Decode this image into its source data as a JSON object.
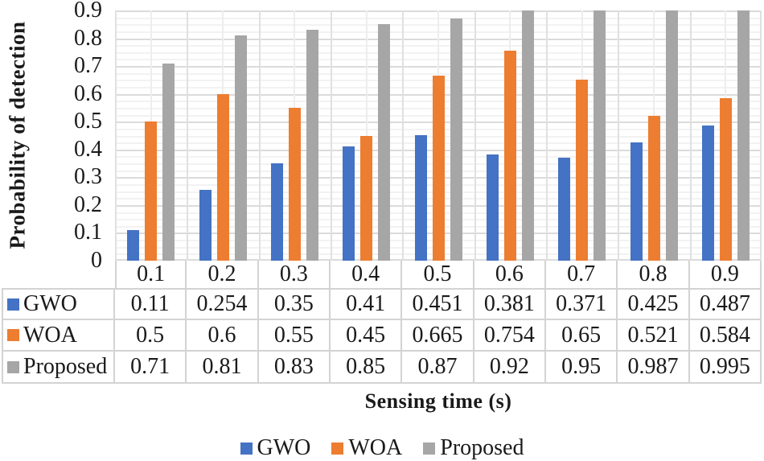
{
  "chart_data": {
    "type": "bar",
    "title": "",
    "xlabel": "Sensing time (s)",
    "ylabel": "Probability of detection",
    "categories": [
      "0.1",
      "0.2",
      "0.3",
      "0.4",
      "0.5",
      "0.6",
      "0.7",
      "0.8",
      "0.9"
    ],
    "series": [
      {
        "name": "GWO",
        "color": "#4472C4",
        "values": [
          0.11,
          0.254,
          0.35,
          0.41,
          0.451,
          0.381,
          0.371,
          0.425,
          0.487
        ]
      },
      {
        "name": "WOA",
        "color": "#ED7D31",
        "values": [
          0.5,
          0.6,
          0.55,
          0.45,
          0.665,
          0.754,
          0.65,
          0.521,
          0.584
        ]
      },
      {
        "name": "Proposed",
        "color": "#A6A6A6",
        "values": [
          0.71,
          0.81,
          0.83,
          0.85,
          0.87,
          0.92,
          0.95,
          0.987,
          0.995
        ]
      }
    ],
    "ylim": [
      0,
      0.9
    ],
    "ytick_step": 0.1,
    "yticks": [
      "0.9",
      "0.8",
      "0.7",
      "0.6",
      "0.5",
      "0.4",
      "0.3",
      "0.2",
      "0.1",
      "0"
    ],
    "minor_grid_step": 0.025,
    "grid": "horizontal major+minor, vertical at category boundaries and midpoints",
    "legend_position": "bottom",
    "legend_items": [
      "GWO",
      "WOA",
      "Proposed"
    ],
    "data_table_shown": true
  },
  "colors": {
    "grid_major": "#dbdbdb",
    "grid_minor": "#f2f2f2",
    "grid_v_major": "#e0e0e0",
    "grid_v_minor": "#ededed",
    "table_border": "#d3d3d3",
    "text": "#1a1a1a",
    "background": "#ffffff"
  }
}
